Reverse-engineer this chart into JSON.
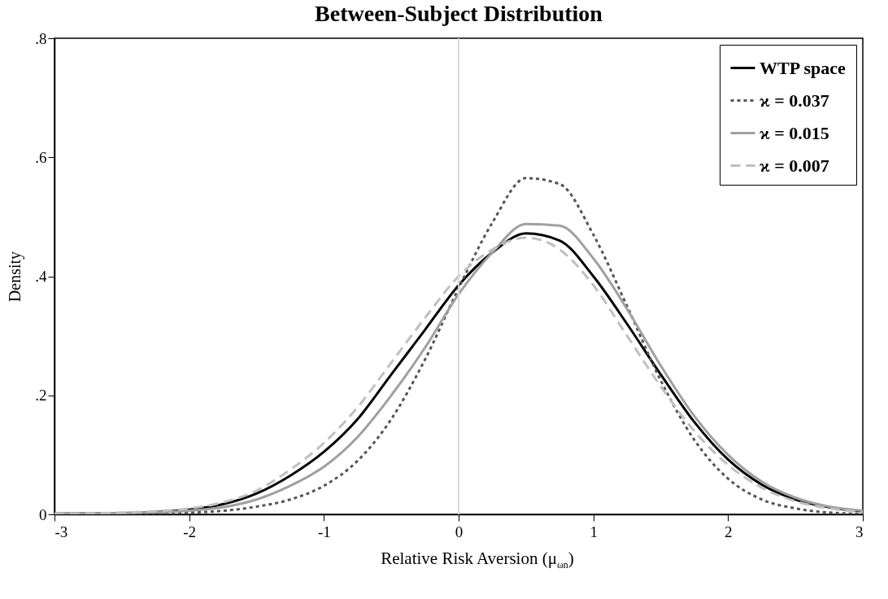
{
  "chart_data": {
    "type": "line",
    "title": "Between-Subject Distribution",
    "xlabel": "Relative Risk Aversion (μ$_{ωn}$)",
    "ylabel": "Density",
    "x": [
      -3,
      -2.5,
      -2,
      -1.75,
      -1.5,
      -1.25,
      -1,
      -0.75,
      -0.5,
      -0.25,
      0,
      0.25,
      0.5,
      0.75,
      1,
      1.25,
      1.5,
      1.75,
      2,
      2.25,
      2.5,
      2.75,
      3
    ],
    "series": [
      {
        "name": "WTP space",
        "color": "#000000",
        "line_style": "solid",
        "values": [
          0.001,
          0.002,
          0.008,
          0.017,
          0.035,
          0.065,
          0.105,
          0.16,
          0.235,
          0.31,
          0.385,
          0.44,
          0.472,
          0.46,
          0.4,
          0.32,
          0.235,
          0.155,
          0.092,
          0.05,
          0.025,
          0.012,
          0.005
        ]
      },
      {
        "name": "ϰ = 0.037",
        "color": "#555555",
        "line_style": "dotted",
        "values": [
          0,
          0.001,
          0.003,
          0.006,
          0.013,
          0.025,
          0.048,
          0.09,
          0.16,
          0.26,
          0.38,
          0.49,
          0.565,
          0.555,
          0.47,
          0.35,
          0.225,
          0.125,
          0.06,
          0.025,
          0.01,
          0.003,
          0.001
        ]
      },
      {
        "name": "ϰ = 0.015",
        "color": "#a0a0a0",
        "line_style": "solid",
        "values": [
          0.001,
          0.002,
          0.006,
          0.012,
          0.025,
          0.048,
          0.08,
          0.13,
          0.2,
          0.28,
          0.37,
          0.44,
          0.488,
          0.485,
          0.43,
          0.345,
          0.25,
          0.165,
          0.1,
          0.055,
          0.028,
          0.013,
          0.006
        ]
      },
      {
        "name": "ϰ = 0.007",
        "color": "#c0c0c0",
        "line_style": "dashed",
        "values": [
          0.001,
          0.003,
          0.01,
          0.02,
          0.04,
          0.075,
          0.12,
          0.18,
          0.255,
          0.33,
          0.4,
          0.445,
          0.465,
          0.445,
          0.385,
          0.3,
          0.215,
          0.14,
          0.083,
          0.045,
          0.022,
          0.01,
          0.004
        ]
      }
    ],
    "xlim": [
      -3,
      3
    ],
    "xticks": [
      -3,
      -2,
      -1,
      0,
      1,
      2,
      3
    ],
    "ylim": [
      0,
      0.8
    ],
    "yticks": [
      0,
      {
        "value": 0.2,
        "label": ".2"
      },
      {
        "value": 0.4,
        "label": ".4"
      },
      {
        "value": 0.6,
        "label": ".6"
      },
      {
        "value": 0.8,
        "label": ".8"
      }
    ],
    "ref_lines": [
      {
        "axis": "x",
        "value": 0,
        "color": "#d9d9d9"
      }
    ],
    "grid": false,
    "legend": "top right",
    "marker": "none"
  }
}
